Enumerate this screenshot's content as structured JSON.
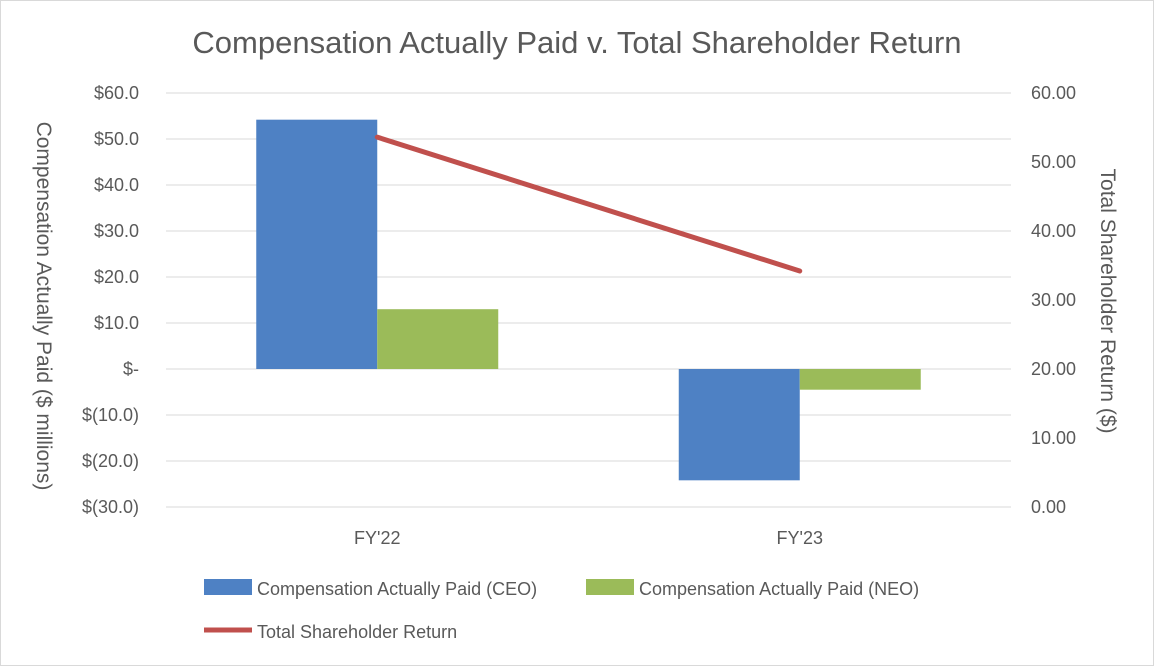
{
  "chart_data": {
    "type": "bar",
    "title": "Compensation Actually Paid v. Total Shareholder Return",
    "categories": [
      "FY'22",
      "FY'23"
    ],
    "y_left": {
      "label": "Compensation Actually Paid ($ millions)",
      "range": [
        -30,
        60
      ],
      "ticks": [
        60,
        50,
        40,
        30,
        20,
        10,
        0,
        -10,
        -20,
        -30
      ],
      "tick_labels": [
        "$60.0",
        "$50.0",
        "$40.0",
        "$30.0",
        "$20.0",
        "$10.0",
        "$-",
        "$(10.0)",
        "$(20.0)",
        "$(30.0)"
      ]
    },
    "y_right": {
      "label": "Total Shareholder Return ($)",
      "range": [
        0,
        60
      ],
      "ticks": [
        60,
        50,
        40,
        30,
        20,
        10,
        0
      ],
      "tick_labels": [
        "60.00",
        "50.00",
        "40.00",
        "30.00",
        "20.00",
        "10.00",
        "0.00"
      ]
    },
    "series": [
      {
        "name": "Compensation Actually Paid (CEO)",
        "type": "bar",
        "axis": "left",
        "color": "#4e81c4",
        "values": [
          54.2,
          -24.2
        ]
      },
      {
        "name": "Compensation Actually Paid (NEO)",
        "type": "bar",
        "axis": "left",
        "color": "#9bbb59",
        "values": [
          13.0,
          -4.5
        ]
      },
      {
        "name": "Total Shareholder Return",
        "type": "line",
        "axis": "right",
        "color": "#c0504d",
        "values": [
          53.6,
          34.2
        ]
      }
    ],
    "grid": true,
    "legend_position": "bottom"
  }
}
